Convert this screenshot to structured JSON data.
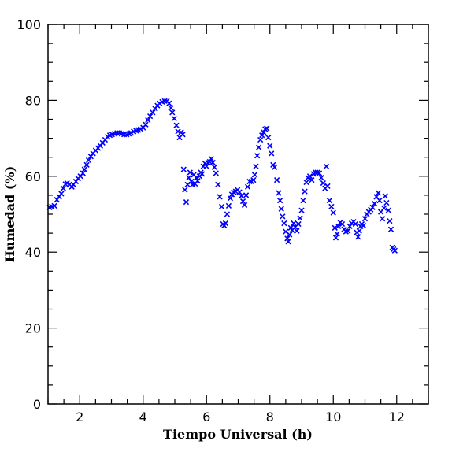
{
  "chart_data": {
    "type": "scatter",
    "xlabel": "Tiempo Universal (h)",
    "ylabel": "Humedad (%)",
    "xlim": [
      1,
      13
    ],
    "ylim": [
      0,
      100
    ],
    "x_ticks": [
      "2",
      "4",
      "6",
      "8",
      "10",
      "12"
    ],
    "y_ticks": [
      "0",
      "20",
      "40",
      "60",
      "80",
      "100"
    ],
    "marker": "x",
    "marker_color": "#0000ff",
    "series": [
      {
        "points": [
          [
            1.05,
            51.8
          ],
          [
            1.12,
            52.0
          ],
          [
            1.2,
            52.2
          ],
          [
            1.28,
            53.8
          ],
          [
            1.35,
            54.6
          ],
          [
            1.42,
            55.4
          ],
          [
            1.48,
            56.8
          ],
          [
            1.55,
            57.9
          ],
          [
            1.6,
            58.2
          ],
          [
            1.68,
            57.8
          ],
          [
            1.75,
            57.2
          ],
          [
            1.8,
            57.8
          ],
          [
            1.88,
            58.6
          ],
          [
            1.95,
            59.4
          ],
          [
            2.02,
            60.0
          ],
          [
            2.1,
            60.8
          ],
          [
            2.15,
            61.8
          ],
          [
            2.22,
            63.0
          ],
          [
            2.28,
            64.2
          ],
          [
            2.35,
            65.2
          ],
          [
            2.42,
            66.0
          ],
          [
            2.5,
            66.8
          ],
          [
            2.58,
            67.4
          ],
          [
            2.65,
            68.0
          ],
          [
            2.72,
            68.8
          ],
          [
            2.8,
            69.6
          ],
          [
            2.88,
            70.4
          ],
          [
            2.95,
            70.8
          ],
          [
            3.02,
            71.0
          ],
          [
            3.1,
            71.2
          ],
          [
            3.18,
            71.4
          ],
          [
            3.25,
            71.4
          ],
          [
            3.32,
            71.2
          ],
          [
            3.4,
            71.0
          ],
          [
            3.48,
            71.0
          ],
          [
            3.55,
            71.2
          ],
          [
            3.62,
            71.4
          ],
          [
            3.7,
            71.8
          ],
          [
            3.78,
            72.0
          ],
          [
            3.85,
            72.2
          ],
          [
            3.92,
            72.4
          ],
          [
            4.0,
            72.8
          ],
          [
            4.08,
            73.6
          ],
          [
            4.15,
            74.8
          ],
          [
            4.22,
            75.8
          ],
          [
            4.3,
            76.8
          ],
          [
            4.38,
            77.8
          ],
          [
            4.45,
            78.6
          ],
          [
            4.52,
            79.2
          ],
          [
            4.6,
            79.6
          ],
          [
            4.68,
            79.8
          ],
          [
            4.75,
            79.8
          ],
          [
            4.82,
            79.2
          ],
          [
            4.88,
            78.0
          ],
          [
            4.92,
            76.8
          ],
          [
            4.98,
            75.2
          ],
          [
            5.05,
            73.4
          ],
          [
            5.1,
            71.8
          ],
          [
            5.15,
            70.2
          ],
          [
            5.2,
            71.6
          ],
          [
            5.25,
            71.0
          ],
          [
            5.28,
            61.8
          ],
          [
            5.32,
            56.4
          ],
          [
            5.36,
            53.2
          ],
          [
            5.4,
            57.8
          ],
          [
            5.44,
            59.6
          ],
          [
            5.48,
            61.0
          ],
          [
            5.52,
            58.6
          ],
          [
            5.56,
            57.8
          ],
          [
            5.6,
            60.4
          ],
          [
            5.64,
            58.0
          ],
          [
            5.68,
            59.6
          ],
          [
            5.72,
            58.8
          ],
          [
            5.78,
            60.0
          ],
          [
            5.82,
            61.0
          ],
          [
            5.86,
            60.6
          ],
          [
            5.9,
            62.6
          ],
          [
            5.95,
            63.4
          ],
          [
            6.0,
            62.6
          ],
          [
            6.05,
            63.6
          ],
          [
            6.1,
            63.8
          ],
          [
            6.15,
            64.6
          ],
          [
            6.2,
            63.6
          ],
          [
            6.25,
            62.4
          ],
          [
            6.3,
            60.8
          ],
          [
            6.36,
            57.8
          ],
          [
            6.42,
            54.6
          ],
          [
            6.48,
            52.0
          ],
          [
            6.52,
            47.4
          ],
          [
            6.56,
            47.0
          ],
          [
            6.6,
            47.6
          ],
          [
            6.65,
            50.0
          ],
          [
            6.7,
            52.2
          ],
          [
            6.75,
            54.2
          ],
          [
            6.8,
            55.2
          ],
          [
            6.86,
            55.8
          ],
          [
            6.92,
            56.0
          ],
          [
            6.98,
            56.4
          ],
          [
            7.04,
            55.8
          ],
          [
            7.1,
            54.8
          ],
          [
            7.15,
            53.4
          ],
          [
            7.2,
            52.4
          ],
          [
            7.25,
            55.0
          ],
          [
            7.3,
            57.2
          ],
          [
            7.36,
            58.6
          ],
          [
            7.42,
            58.6
          ],
          [
            7.48,
            59.0
          ],
          [
            7.52,
            60.4
          ],
          [
            7.56,
            62.6
          ],
          [
            7.6,
            65.4
          ],
          [
            7.65,
            67.6
          ],
          [
            7.7,
            69.6
          ],
          [
            7.75,
            70.8
          ],
          [
            7.8,
            71.6
          ],
          [
            7.85,
            72.4
          ],
          [
            7.9,
            72.6
          ],
          [
            7.95,
            70.2
          ],
          [
            8.0,
            68.0
          ],
          [
            8.05,
            66.0
          ],
          [
            8.1,
            63.0
          ],
          [
            8.15,
            62.4
          ],
          [
            8.22,
            59.0
          ],
          [
            8.28,
            55.6
          ],
          [
            8.32,
            53.6
          ],
          [
            8.36,
            51.4
          ],
          [
            8.4,
            49.4
          ],
          [
            8.45,
            47.6
          ],
          [
            8.5,
            45.4
          ],
          [
            8.55,
            43.6
          ],
          [
            8.58,
            42.8
          ],
          [
            8.62,
            44.6
          ],
          [
            8.66,
            46.4
          ],
          [
            8.7,
            45.8
          ],
          [
            8.75,
            47.6
          ],
          [
            8.8,
            46.6
          ],
          [
            8.85,
            45.6
          ],
          [
            8.9,
            47.4
          ],
          [
            8.95,
            49.0
          ],
          [
            9.0,
            51.0
          ],
          [
            9.05,
            53.6
          ],
          [
            9.1,
            56.0
          ],
          [
            9.15,
            58.4
          ],
          [
            9.2,
            59.6
          ],
          [
            9.26,
            60.0
          ],
          [
            9.32,
            59.0
          ],
          [
            9.38,
            60.6
          ],
          [
            9.44,
            61.0
          ],
          [
            9.5,
            61.0
          ],
          [
            9.56,
            60.8
          ],
          [
            9.62,
            59.6
          ],
          [
            9.68,
            58.2
          ],
          [
            9.74,
            56.8
          ],
          [
            9.78,
            62.6
          ],
          [
            9.82,
            57.4
          ],
          [
            9.88,
            53.6
          ],
          [
            9.94,
            52.0
          ],
          [
            10.0,
            50.4
          ],
          [
            10.05,
            46.4
          ],
          [
            10.08,
            43.8
          ],
          [
            10.12,
            44.8
          ],
          [
            10.16,
            46.8
          ],
          [
            10.22,
            47.8
          ],
          [
            10.28,
            47.4
          ],
          [
            10.34,
            46.0
          ],
          [
            10.4,
            45.4
          ],
          [
            10.46,
            45.6
          ],
          [
            10.52,
            46.8
          ],
          [
            10.58,
            47.6
          ],
          [
            10.64,
            48.0
          ],
          [
            10.7,
            47.4
          ],
          [
            10.74,
            45.2
          ],
          [
            10.78,
            44.0
          ],
          [
            10.82,
            45.6
          ],
          [
            10.86,
            46.8
          ],
          [
            10.9,
            47.4
          ],
          [
            10.95,
            47.0
          ],
          [
            11.0,
            48.8
          ],
          [
            11.06,
            50.0
          ],
          [
            11.12,
            50.6
          ],
          [
            11.18,
            51.2
          ],
          [
            11.24,
            51.8
          ],
          [
            11.3,
            52.8
          ],
          [
            11.36,
            54.6
          ],
          [
            11.42,
            55.6
          ],
          [
            11.46,
            53.6
          ],
          [
            11.5,
            50.6
          ],
          [
            11.55,
            48.8
          ],
          [
            11.6,
            51.6
          ],
          [
            11.64,
            54.8
          ],
          [
            11.68,
            53.0
          ],
          [
            11.74,
            51.0
          ],
          [
            11.78,
            48.2
          ],
          [
            11.82,
            46.0
          ],
          [
            11.86,
            41.2
          ],
          [
            11.9,
            40.8
          ],
          [
            11.94,
            40.4
          ]
        ]
      }
    ]
  }
}
